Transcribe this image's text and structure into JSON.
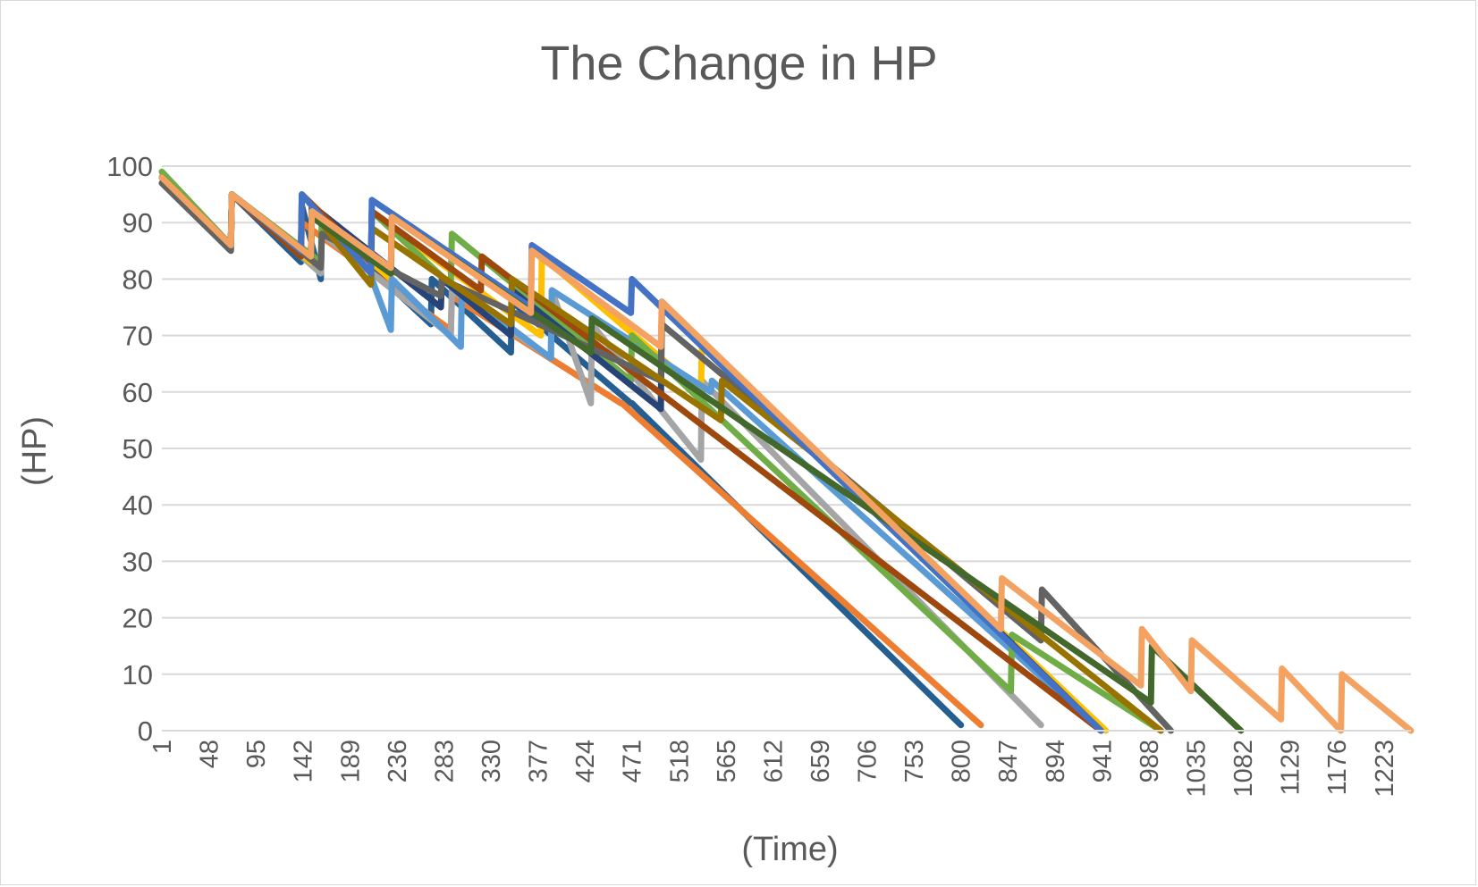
{
  "chart_data": {
    "type": "line",
    "title": "The Change in HP",
    "xlabel": "(Time)",
    "ylabel": "(HP)",
    "xlim": [
      1,
      1250
    ],
    "ylim": [
      0,
      100
    ],
    "yticks": [
      0,
      10,
      20,
      30,
      40,
      50,
      60,
      70,
      80,
      90,
      100
    ],
    "xticks": [
      "1",
      "48",
      "95",
      "142",
      "189",
      "236",
      "283",
      "330",
      "377",
      "424",
      "471",
      "518",
      "565",
      "612",
      "659",
      "706",
      "753",
      "800",
      "847",
      "894",
      "941",
      "988",
      "1035",
      "1082",
      "1129",
      "1176",
      "1223"
    ],
    "grid": "horizontal",
    "legend": "none",
    "series": [
      {
        "color": "#255e91",
        "points": [
          [
            1,
            98
          ],
          [
            70,
            86
          ],
          [
            71,
            95
          ],
          [
            140,
            83
          ],
          [
            141,
            93
          ],
          [
            160,
            80
          ],
          [
            161,
            90
          ],
          [
            270,
            72
          ],
          [
            271,
            80
          ],
          [
            350,
            67
          ],
          [
            351,
            76
          ],
          [
            470,
            58
          ],
          [
            471,
            58
          ],
          [
            800,
            1
          ]
        ]
      },
      {
        "color": "#ed7d31",
        "points": [
          [
            1,
            98
          ],
          [
            70,
            86
          ],
          [
            71,
            95
          ],
          [
            140,
            84
          ],
          [
            141,
            90
          ],
          [
            290,
            71
          ],
          [
            291,
            77
          ],
          [
            460,
            58
          ],
          [
            461,
            58
          ],
          [
            820,
            1
          ]
        ]
      },
      {
        "color": "#a5a5a5",
        "points": [
          [
            1,
            97
          ],
          [
            70,
            85
          ],
          [
            71,
            95
          ],
          [
            160,
            81
          ],
          [
            161,
            88
          ],
          [
            290,
            70
          ],
          [
            291,
            78
          ],
          [
            390,
            66
          ],
          [
            391,
            78
          ],
          [
            430,
            58
          ],
          [
            431,
            72
          ],
          [
            540,
            48
          ],
          [
            541,
            62
          ],
          [
            880,
            1
          ]
        ]
      },
      {
        "color": "#ffc000",
        "points": [
          [
            1,
            98
          ],
          [
            70,
            86
          ],
          [
            71,
            95
          ],
          [
            150,
            83
          ],
          [
            151,
            92
          ],
          [
            230,
            80
          ],
          [
            231,
            89
          ],
          [
            380,
            70
          ],
          [
            381,
            84
          ],
          [
            540,
            60
          ],
          [
            541,
            68
          ],
          [
            945,
            0
          ]
        ]
      },
      {
        "color": "#5b9bd5",
        "points": [
          [
            1,
            98
          ],
          [
            70,
            86
          ],
          [
            71,
            95
          ],
          [
            150,
            84
          ],
          [
            151,
            92
          ],
          [
            210,
            82
          ],
          [
            211,
            80
          ],
          [
            230,
            71
          ],
          [
            231,
            80
          ],
          [
            300,
            68
          ],
          [
            301,
            78
          ],
          [
            390,
            66
          ],
          [
            391,
            78
          ],
          [
            550,
            60
          ],
          [
            551,
            62
          ],
          [
            940,
            0
          ]
        ]
      },
      {
        "color": "#70ad47",
        "points": [
          [
            1,
            99
          ],
          [
            70,
            86
          ],
          [
            71,
            95
          ],
          [
            160,
            83
          ],
          [
            161,
            91
          ],
          [
            210,
            83
          ],
          [
            211,
            92
          ],
          [
            290,
            79
          ],
          [
            291,
            88
          ],
          [
            470,
            62
          ],
          [
            471,
            70
          ],
          [
            850,
            7
          ],
          [
            851,
            17
          ],
          [
            1000,
            0
          ]
        ]
      },
      {
        "color": "#264478",
        "points": [
          [
            1,
            98
          ],
          [
            70,
            86
          ],
          [
            71,
            95
          ],
          [
            150,
            84
          ],
          [
            151,
            93
          ],
          [
            280,
            75
          ],
          [
            281,
            80
          ],
          [
            350,
            70
          ],
          [
            351,
            78
          ],
          [
            500,
            57
          ],
          [
            501,
            76
          ],
          [
            940,
            0
          ]
        ]
      },
      {
        "color": "#9e480e",
        "points": [
          [
            1,
            98
          ],
          [
            70,
            86
          ],
          [
            71,
            95
          ],
          [
            140,
            84
          ],
          [
            141,
            95
          ],
          [
            210,
            83
          ],
          [
            211,
            92
          ],
          [
            320,
            78
          ],
          [
            321,
            84
          ],
          [
            940,
            0
          ]
        ]
      },
      {
        "color": "#636363",
        "points": [
          [
            1,
            97
          ],
          [
            70,
            85
          ],
          [
            71,
            95
          ],
          [
            160,
            82
          ],
          [
            161,
            88
          ],
          [
            280,
            77
          ],
          [
            281,
            80
          ],
          [
            500,
            62
          ],
          [
            501,
            72
          ],
          [
            880,
            16
          ],
          [
            881,
            25
          ],
          [
            1010,
            0
          ]
        ]
      },
      {
        "color": "#997300",
        "points": [
          [
            1,
            98
          ],
          [
            70,
            86
          ],
          [
            71,
            95
          ],
          [
            150,
            84
          ],
          [
            151,
            92
          ],
          [
            210,
            79
          ],
          [
            211,
            89
          ],
          [
            350,
            72
          ],
          [
            351,
            80
          ],
          [
            560,
            55
          ],
          [
            561,
            62
          ],
          [
            1000,
            0
          ]
        ]
      },
      {
        "color": "#4472c4",
        "points": [
          [
            1,
            98
          ],
          [
            70,
            86
          ],
          [
            71,
            95
          ],
          [
            140,
            85
          ],
          [
            141,
            95
          ],
          [
            210,
            81
          ],
          [
            211,
            94
          ],
          [
            370,
            75
          ],
          [
            371,
            86
          ],
          [
            470,
            74
          ],
          [
            471,
            80
          ],
          [
            940,
            0
          ]
        ]
      },
      {
        "color": "#43682b",
        "points": [
          [
            1,
            98
          ],
          [
            70,
            86
          ],
          [
            71,
            95
          ],
          [
            150,
            84
          ],
          [
            151,
            91
          ],
          [
            230,
            81
          ],
          [
            231,
            91
          ],
          [
            430,
            67
          ],
          [
            431,
            73
          ],
          [
            990,
            5
          ],
          [
            991,
            15
          ],
          [
            1080,
            0
          ]
        ]
      },
      {
        "color": "#f4a261",
        "points": [
          [
            1,
            98
          ],
          [
            70,
            86
          ],
          [
            71,
            95
          ],
          [
            150,
            84
          ],
          [
            151,
            92
          ],
          [
            230,
            82
          ],
          [
            231,
            91
          ],
          [
            370,
            74
          ],
          [
            371,
            85
          ],
          [
            500,
            68
          ],
          [
            501,
            76
          ],
          [
            840,
            18
          ],
          [
            841,
            27
          ],
          [
            980,
            8
          ],
          [
            981,
            18
          ],
          [
            1030,
            7
          ],
          [
            1031,
            16
          ],
          [
            1120,
            2
          ],
          [
            1121,
            11
          ],
          [
            1180,
            0
          ],
          [
            1181,
            10
          ],
          [
            1250,
            0
          ]
        ]
      }
    ]
  }
}
